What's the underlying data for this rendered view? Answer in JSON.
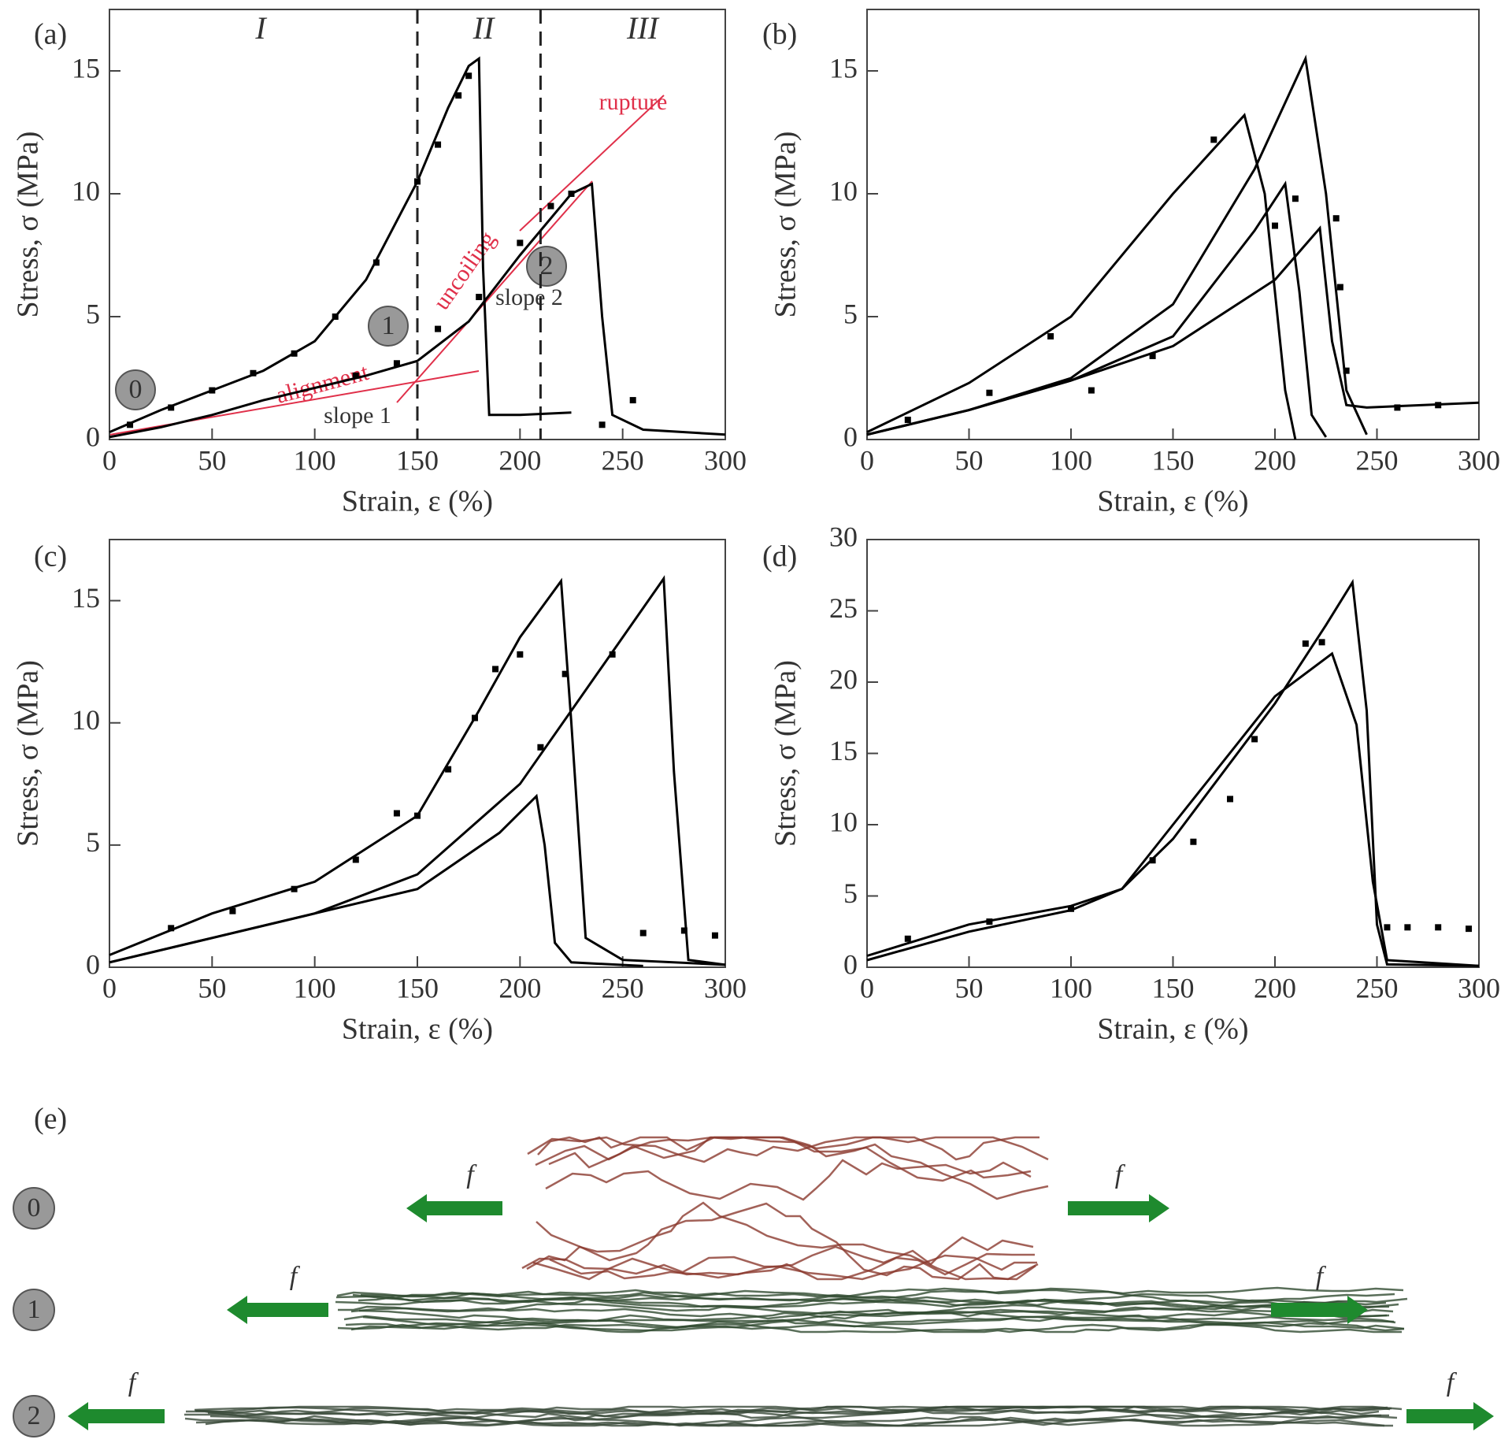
{
  "chart_data": [
    {
      "type": "line",
      "panel_label": "(a)",
      "xlabel": "Strain, ε (%)",
      "ylabel": "Stress, σ (MPa)",
      "xlim": [
        0,
        300
      ],
      "ylim": [
        0,
        17.5
      ],
      "xticks": [
        0,
        50,
        100,
        150,
        200,
        250,
        300
      ],
      "yticks": [
        0,
        5,
        10,
        15
      ],
      "vlines": [
        150,
        210
      ],
      "regions": [
        "I",
        "II",
        "III"
      ],
      "annotations": [
        "rupture",
        "uncoiling",
        "alignment",
        "slope 1",
        "slope 2"
      ],
      "state_labels": [
        "0",
        "1",
        "2"
      ],
      "series": [
        {
          "style": "line",
          "color": "#000000",
          "x": [
            0,
            25,
            50,
            75,
            100,
            125,
            150,
            165,
            175,
            180,
            182,
            185,
            200,
            225
          ],
          "values": [
            0.3,
            1.2,
            2,
            2.8,
            4,
            6.5,
            10.5,
            13.5,
            15.2,
            15.5,
            7,
            1,
            1,
            1.1
          ]
        },
        {
          "style": "line",
          "color": "#000000",
          "x": [
            0,
            25,
            50,
            75,
            100,
            125,
            150,
            175,
            200,
            225,
            235,
            240,
            245,
            260,
            300
          ],
          "values": [
            0.1,
            0.5,
            1,
            1.6,
            2.1,
            2.6,
            3.2,
            4.8,
            7.5,
            10,
            10.4,
            5,
            1,
            0.4,
            0.2
          ]
        },
        {
          "style": "markers",
          "color": "#000000",
          "x": [
            10,
            30,
            50,
            70,
            90,
            110,
            130,
            150,
            160,
            170,
            175,
            120,
            140,
            160,
            180,
            200,
            215,
            225,
            240,
            255
          ],
          "values": [
            0.6,
            1.3,
            2,
            2.7,
            3.5,
            5,
            7.2,
            10.5,
            12,
            14,
            14.8,
            2.6,
            3.1,
            4.5,
            5.8,
            8,
            9.5,
            10,
            0.6,
            1.6
          ]
        }
      ]
    },
    {
      "type": "line",
      "panel_label": "(b)",
      "xlabel": "Strain, ε (%)",
      "ylabel": "Stress, σ (MPa)",
      "xlim": [
        0,
        300
      ],
      "ylim": [
        0,
        17.5
      ],
      "xticks": [
        0,
        50,
        100,
        150,
        200,
        250,
        300
      ],
      "yticks": [
        0,
        5,
        10,
        15
      ],
      "series": [
        {
          "style": "line",
          "color": "#000000",
          "x": [
            0,
            50,
            100,
            150,
            185,
            195,
            205,
            210
          ],
          "values": [
            0.3,
            2.3,
            5,
            10,
            13.2,
            10,
            2,
            0
          ]
        },
        {
          "style": "line",
          "color": "#000000",
          "x": [
            0,
            50,
            100,
            150,
            190,
            215,
            225,
            235,
            245
          ],
          "values": [
            0.2,
            1.2,
            2.5,
            5.5,
            11,
            15.5,
            10,
            2,
            0.2
          ]
        },
        {
          "style": "line",
          "color": "#000000",
          "x": [
            0,
            50,
            100,
            150,
            190,
            205,
            212,
            218,
            225
          ],
          "values": [
            0.2,
            1.2,
            2.4,
            4.2,
            8.5,
            10.4,
            6,
            1,
            0.1
          ]
        },
        {
          "style": "line",
          "color": "#000000",
          "x": [
            0,
            50,
            100,
            150,
            200,
            222,
            228,
            235,
            245,
            300
          ],
          "values": [
            0.2,
            1.2,
            2.4,
            3.8,
            6.5,
            8.6,
            4,
            1.4,
            1.3,
            1.5
          ]
        },
        {
          "style": "markers",
          "color": "#000000",
          "x": [
            20,
            60,
            90,
            110,
            140,
            170,
            200,
            210,
            230,
            232,
            235,
            260,
            280
          ],
          "values": [
            0.8,
            1.9,
            4.2,
            2,
            3.4,
            12.2,
            8.7,
            9.8,
            9,
            6.2,
            2.8,
            1.3,
            1.4
          ]
        }
      ]
    },
    {
      "type": "line",
      "panel_label": "(c)",
      "xlabel": "Strain, ε (%)",
      "ylabel": "Stress, σ (MPa)",
      "xlim": [
        0,
        300
      ],
      "ylim": [
        0,
        17.5
      ],
      "xticks": [
        0,
        50,
        100,
        150,
        200,
        250,
        300
      ],
      "yticks": [
        0,
        5,
        10,
        15
      ],
      "series": [
        {
          "style": "line",
          "color": "#000000",
          "x": [
            0,
            50,
            100,
            150,
            180,
            200,
            220,
            225,
            232,
            250,
            300
          ],
          "values": [
            0.5,
            2.2,
            3.5,
            6.2,
            10.5,
            13.5,
            15.8,
            10,
            1.2,
            0.3,
            0.1
          ]
        },
        {
          "style": "line",
          "color": "#000000",
          "x": [
            0,
            50,
            100,
            150,
            200,
            250,
            270,
            275,
            282,
            300
          ],
          "values": [
            0.2,
            1.2,
            2.2,
            3.8,
            7.5,
            13.5,
            15.9,
            8,
            0.3,
            0.1
          ]
        },
        {
          "style": "line",
          "color": "#000000",
          "x": [
            0,
            50,
            100,
            150,
            190,
            208,
            212,
            217,
            225,
            260
          ],
          "values": [
            0.2,
            1.2,
            2.2,
            3.2,
            5.5,
            7,
            5,
            1,
            0.2,
            0.05
          ]
        },
        {
          "style": "markers",
          "color": "#000000",
          "x": [
            30,
            60,
            90,
            120,
            140,
            150,
            165,
            178,
            188,
            200,
            210,
            222,
            245,
            260,
            280,
            295
          ],
          "values": [
            1.6,
            2.3,
            3.2,
            4.4,
            6.3,
            6.2,
            8.1,
            10.2,
            12.2,
            12.8,
            9,
            12,
            12.8,
            1.4,
            1.5,
            1.3
          ]
        }
      ]
    },
    {
      "type": "line",
      "panel_label": "(d)",
      "xlabel": "Strain, ε (%)",
      "ylabel": "Stress, σ (MPa)",
      "xlim": [
        0,
        300
      ],
      "ylim": [
        0,
        30
      ],
      "xticks": [
        0,
        50,
        100,
        150,
        200,
        250,
        300
      ],
      "yticks": [
        0,
        5,
        10,
        15,
        20,
        25,
        30
      ],
      "series": [
        {
          "style": "line",
          "color": "#000000",
          "x": [
            0,
            50,
            100,
            125,
            150,
            200,
            225,
            238,
            245,
            250,
            255,
            300
          ],
          "values": [
            0.5,
            2.5,
            4,
            5.5,
            9,
            18.5,
            24,
            27,
            18,
            3,
            0.2,
            0.1
          ]
        },
        {
          "style": "line",
          "color": "#000000",
          "x": [
            0,
            50,
            100,
            125,
            150,
            200,
            228,
            240,
            248,
            255,
            300
          ],
          "values": [
            0.8,
            3,
            4.3,
            5.5,
            10,
            19,
            22,
            17,
            6,
            0.5,
            0.1
          ]
        },
        {
          "style": "markers",
          "color": "#000000",
          "x": [
            20,
            60,
            100,
            140,
            160,
            178,
            190,
            215,
            223,
            255,
            265,
            280,
            295
          ],
          "values": [
            2,
            3.2,
            4.1,
            7.5,
            8.8,
            11.8,
            16,
            22.7,
            22.8,
            2.8,
            2.8,
            2.8,
            2.7
          ]
        }
      ]
    }
  ],
  "panel_e": {
    "label": "(e)",
    "states": [
      "0",
      "1",
      "2"
    ],
    "force": "f"
  }
}
